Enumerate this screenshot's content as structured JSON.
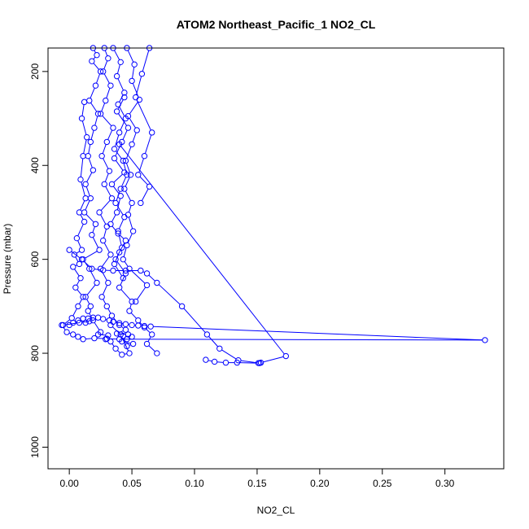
{
  "chart_data": {
    "type": "line",
    "title": "ATOM2 Northeast_Pacific_1 NO2_CL",
    "xlabel": "NO2_CL",
    "ylabel": "Pressure (mbar)",
    "xlim": [
      -0.017,
      0.347
    ],
    "ylim": [
      1046,
      150
    ],
    "y_reversed": true,
    "x_ticks": [
      {
        "value": 0.0,
        "label": "0.00"
      },
      {
        "value": 0.05,
        "label": "0.05"
      },
      {
        "value": 0.1,
        "label": "0.10"
      },
      {
        "value": 0.15,
        "label": "0.15"
      },
      {
        "value": 0.2,
        "label": "0.20"
      },
      {
        "value": 0.25,
        "label": "0.25"
      },
      {
        "value": 0.3,
        "label": "0.30"
      }
    ],
    "y_ticks": [
      {
        "value": 200,
        "label": "200"
      },
      {
        "value": 400,
        "label": "400"
      },
      {
        "value": 600,
        "label": "600"
      },
      {
        "value": 800,
        "label": "800"
      },
      {
        "value": 1000,
        "label": "1000"
      }
    ],
    "color": "#0000ff",
    "marker": "open-circle",
    "series": [
      {
        "x": [
          0.019,
          0.022,
          0.018,
          0.025,
          0.021,
          0.016,
          0.023,
          0.02,
          0.017,
          0.015,
          0.019,
          0.013,
          0.017,
          0.012,
          0.021,
          0.018,
          0.024,
          0.011,
          0.016,
          0.022,
          0.013,
          0.017,
          0.015,
          0.019,
          0.025,
          0.023,
          0.031,
          0.029,
          0.033,
          0.037,
          0.042,
          0.048,
          0.041,
          0.033
        ],
        "y": [
          150,
          165,
          178,
          200,
          230,
          262,
          290,
          320,
          350,
          380,
          410,
          440,
          470,
          500,
          525,
          548,
          580,
          600,
          620,
          650,
          680,
          700,
          710,
          730,
          755,
          760,
          762,
          770,
          775,
          790,
          803,
          800,
          760,
          740
        ]
      },
      {
        "x": [
          0.028,
          0.031,
          0.027,
          0.033,
          0.029,
          0.025,
          0.035,
          0.03,
          0.026,
          0.032,
          0.028,
          0.034,
          0.024,
          0.03,
          0.027,
          0.033,
          0.025,
          0.031,
          0.026,
          0.03,
          0.034,
          0.04,
          0.045,
          0.038,
          0.047,
          0.043,
          0.05,
          0.046,
          0.042,
          0.051,
          0.046
        ],
        "y": [
          150,
          172,
          200,
          230,
          262,
          290,
          320,
          350,
          380,
          412,
          440,
          470,
          500,
          530,
          560,
          590,
          620,
          650,
          680,
          700,
          720,
          740,
          750,
          758,
          760,
          763,
          765,
          770,
          775,
          780,
          785
        ]
      },
      {
        "x": [
          0.035,
          0.041,
          0.038,
          0.044,
          0.039,
          0.045,
          0.04,
          0.036,
          0.043,
          0.046,
          0.041,
          0.037,
          0.044,
          0.039,
          0.042,
          0.037,
          0.045,
          0.04,
          0.05,
          0.048,
          0.055,
          0.06,
          0.066,
          0.062,
          0.07
        ],
        "y": [
          150,
          180,
          210,
          245,
          270,
          300,
          330,
          365,
          390,
          420,
          450,
          480,
          510,
          540,
          575,
          600,
          630,
          660,
          690,
          710,
          730,
          745,
          760,
          780,
          800
        ]
      },
      {
        "x": [
          0.046,
          0.052,
          0.05,
          0.056,
          0.047,
          0.054,
          0.05,
          0.045,
          0.049,
          0.044,
          0.05,
          0.047,
          0.051,
          0.046,
          0.043,
          0.048,
          0.062,
          0.053
        ],
        "y": [
          150,
          185,
          220,
          260,
          295,
          325,
          355,
          390,
          420,
          450,
          480,
          505,
          540,
          570,
          600,
          620,
          655,
          690
        ]
      },
      {
        "x": [
          0.064,
          0.058,
          0.053,
          0.066,
          0.06,
          0.055,
          0.064,
          0.057
        ],
        "y": [
          150,
          205,
          255,
          330,
          380,
          420,
          445,
          480
        ]
      },
      {
        "x": [
          0.012,
          0.01,
          0.014,
          0.011,
          0.009,
          0.013,
          0.008,
          0.012,
          0.006,
          0.01,
          0.004,
          0.008,
          0.003,
          0.009,
          0.005,
          0.011,
          0.007,
          0.002,
          -0.005,
          0.008,
          0.016,
          0.013
        ],
        "y": [
          265,
          300,
          340,
          380,
          430,
          470,
          500,
          520,
          555,
          580,
          590,
          610,
          616,
          640,
          660,
          680,
          700,
          725,
          740,
          735,
          732,
          735
        ]
      },
      {
        "x": [
          0.0,
          0.01,
          0.018,
          0.027,
          0.035,
          0.045,
          0.057,
          0.062,
          0.07,
          0.09,
          0.11,
          0.12,
          0.135,
          0.152,
          0.153,
          0.173,
          0.04
        ],
        "y": [
          580,
          600,
          620,
          623,
          624,
          624,
          624,
          630,
          650,
          700,
          760,
          790,
          815,
          821,
          820,
          806,
          355
        ]
      },
      {
        "x": [
          0.0,
          0.003,
          0.007,
          0.011,
          0.015,
          0.019,
          0.023,
          0.027,
          0.032,
          0.035,
          0.04,
          0.045,
          0.05,
          0.055,
          0.06,
          0.065,
          0.332,
          0.04,
          0.03,
          0.02,
          0.011,
          0.007,
          0.003,
          -0.002,
          -0.006
        ],
        "y": [
          740,
          735,
          730,
          726,
          726,
          724,
          724,
          727,
          730,
          733,
          736,
          738,
          740,
          741,
          742,
          743,
          772,
          770,
          769,
          768,
          770,
          765,
          760,
          755,
          740
        ]
      },
      {
        "x": [
          0.109,
          0.116,
          0.125,
          0.134,
          0.151
        ],
        "y": [
          814,
          818,
          820,
          820,
          821
        ]
      },
      {
        "x": [
          0.044,
          0.038,
          0.047,
          0.042,
          0.036,
          0.044,
          0.034,
          0.041,
          0.038,
          0.033,
          0.039,
          0.045,
          0.04,
          0.036,
          0.043
        ],
        "y": [
          255,
          285,
          320,
          350,
          385,
          415,
          440,
          465,
          500,
          525,
          545,
          560,
          585,
          610,
          640
        ]
      }
    ]
  }
}
